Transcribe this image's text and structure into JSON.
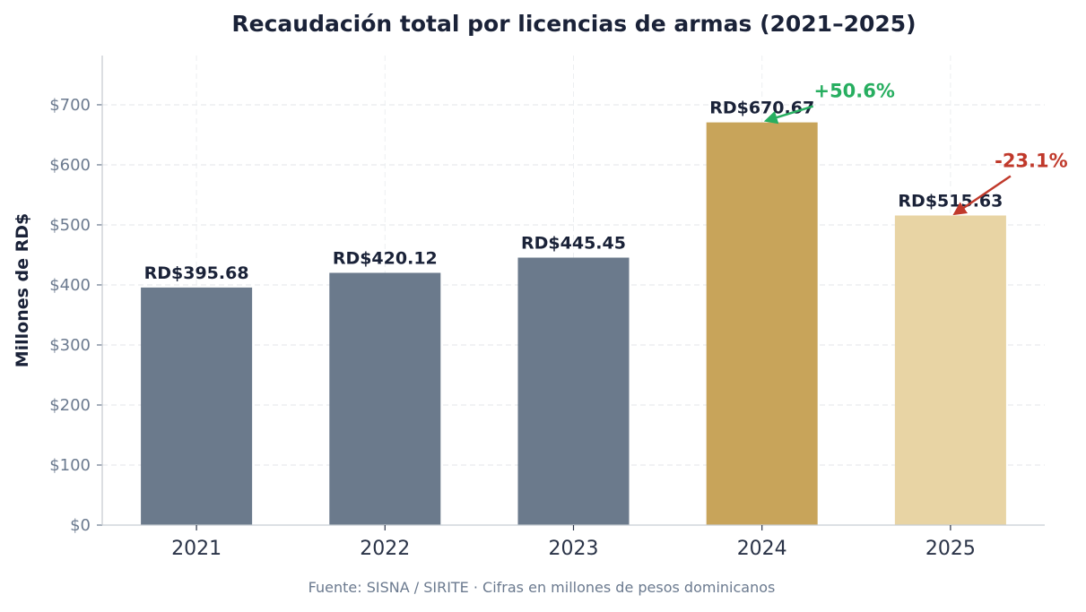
{
  "chart_data": {
    "type": "bar",
    "title": "Recaudación total por licencias de armas (2021–2025)",
    "xlabel": "",
    "ylabel": "Millones de RD$",
    "categories": [
      "2021",
      "2022",
      "2023",
      "2024",
      "2025"
    ],
    "values": [
      395.68,
      420.12,
      445.45,
      670.67,
      515.63
    ],
    "value_labels": [
      "RD$395.68",
      "RD$420.12",
      "RD$445.45",
      "RD$670.67",
      "RD$515.63"
    ],
    "bar_colors": [
      "#6b7a8c",
      "#6b7a8c",
      "#6b7a8c",
      "#c8a45a",
      "#e8d4a4"
    ],
    "ylim": [
      0,
      782
    ],
    "yticks": [
      0,
      100,
      200,
      300,
      400,
      500,
      600,
      700
    ],
    "ytick_labels": [
      "$0",
      "$100",
      "$200",
      "$300",
      "$400",
      "$500",
      "$600",
      "$700"
    ],
    "grid": true,
    "annotations": [
      {
        "text": "+50.6%",
        "target_category": "2024",
        "color": "#27ae60"
      },
      {
        "text": "-23.1%",
        "target_category": "2025",
        "color": "#c0392b"
      }
    ],
    "footnote": "Fuente: SISNA / SIRITE · Cifras en millones de pesos dominicanos"
  }
}
